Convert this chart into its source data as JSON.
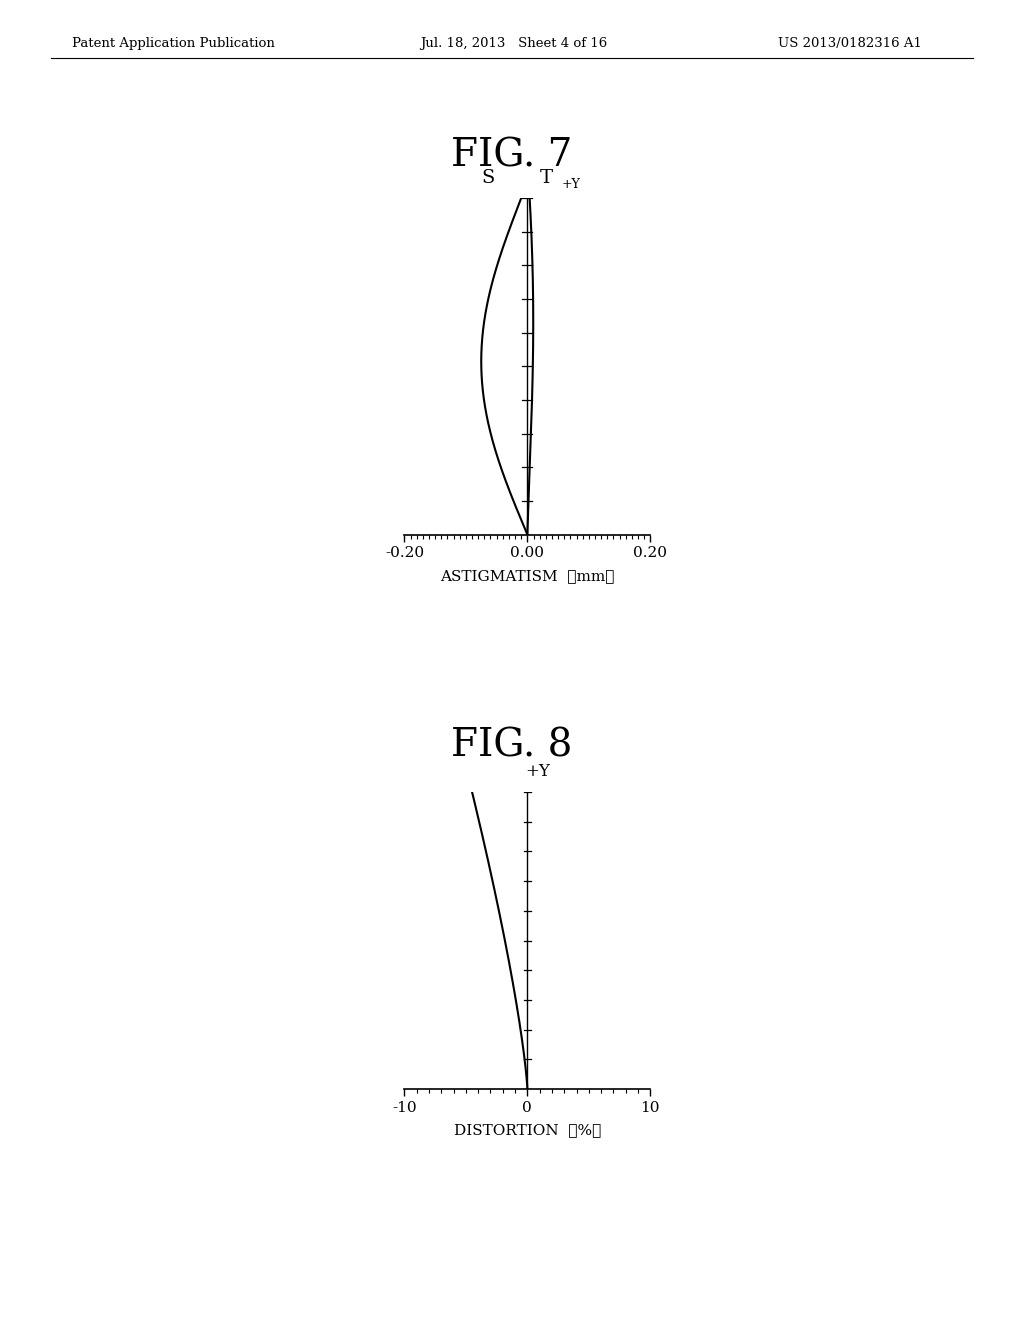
{
  "header_left": "Patent Application Publication",
  "header_mid": "Jul. 18, 2013   Sheet 4 of 16",
  "header_right": "US 2013/0182316 A1",
  "fig7_title": "FIG. 7",
  "fig7_xlabel": "ASTIGMATISM  （mm）",
  "fig7_S_label": "S",
  "fig7_T_label": "T",
  "fig7_T_sub": "+Y",
  "fig7_xlim": [
    -0.2,
    0.2
  ],
  "fig7_xtick_labels": [
    "-0.20",
    "0.00",
    "0.20"
  ],
  "fig7_xticks": [
    -0.2,
    0.0,
    0.2
  ],
  "fig7_ylim": [
    0.0,
    1.0
  ],
  "fig8_title": "FIG. 8",
  "fig8_xlabel": "DISTORTION  （%）",
  "fig8_ylabel_label": "+Y",
  "fig8_xlim": [
    -10,
    10
  ],
  "fig8_xtick_labels": [
    "-10",
    "0",
    "10"
  ],
  "fig8_xticks": [
    -10,
    0,
    10
  ],
  "fig8_ylim": [
    0.0,
    1.0
  ],
  "background_color": "#ffffff",
  "line_color": "#000000",
  "text_color": "#000000"
}
